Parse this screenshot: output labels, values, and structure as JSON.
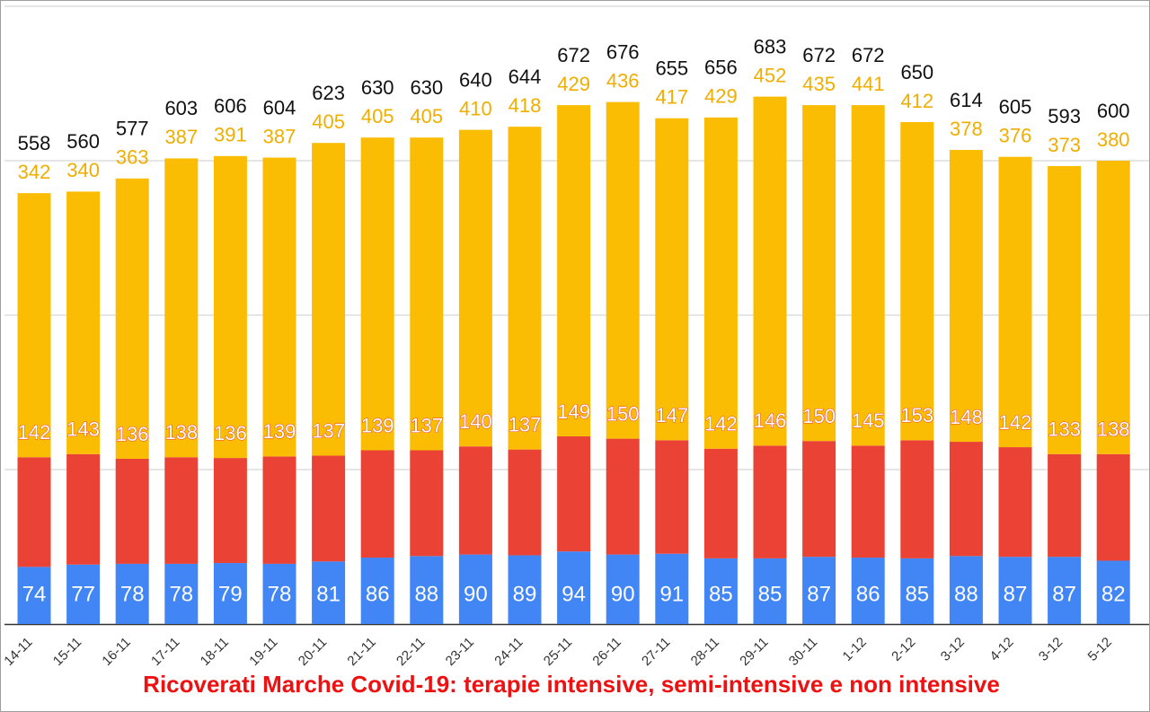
{
  "chart_data": {
    "type": "bar",
    "stacked": true,
    "title": "Ricoverati Marche Covid-19: terapie intensive, semi-intensive e non intensive",
    "xlabel": "",
    "ylabel": "",
    "ylim": [
      0,
      800
    ],
    "grid": true,
    "legend": "none",
    "categories": [
      "14-11",
      "15-11",
      "16-11",
      "17-11",
      "18-11",
      "19-11",
      "20-11",
      "21-11",
      "22-11",
      "23-11",
      "24-11",
      "25-11",
      "26-11",
      "27-11",
      "28-11",
      "29-11",
      "30-11",
      "1-12",
      "2-12",
      "3-12",
      "4-12",
      "3-12",
      "5-12"
    ],
    "series": [
      {
        "key": "intensive",
        "color": "#4285f4",
        "values": [
          74,
          77,
          78,
          78,
          79,
          78,
          81,
          86,
          88,
          90,
          89,
          94,
          90,
          91,
          85,
          85,
          87,
          86,
          85,
          88,
          87,
          87,
          82
        ]
      },
      {
        "key": "semi",
        "color": "#ea4335",
        "values": [
          142,
          143,
          136,
          138,
          136,
          139,
          137,
          139,
          137,
          140,
          137,
          149,
          150,
          147,
          142,
          146,
          150,
          145,
          153,
          148,
          142,
          133,
          138
        ]
      },
      {
        "key": "non",
        "color": "#fbbc04",
        "values": [
          342,
          340,
          363,
          387,
          391,
          387,
          405,
          405,
          405,
          410,
          418,
          429,
          436,
          417,
          429,
          452,
          435,
          441,
          412,
          378,
          376,
          373,
          380
        ]
      }
    ],
    "totals": [
      558,
      560,
      577,
      603,
      606,
      604,
      623,
      630,
      630,
      640,
      644,
      672,
      676,
      655,
      656,
      683,
      672,
      672,
      650,
      614,
      605,
      593,
      600
    ]
  },
  "colors": {
    "non_label": "#f0ae00",
    "semi_label_outline": "#ea4335",
    "gridline": "#cccccc",
    "axis": "#333333"
  }
}
